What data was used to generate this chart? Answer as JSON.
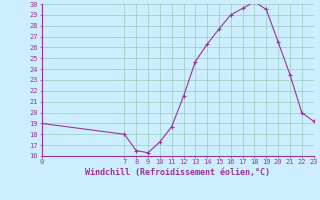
{
  "x": [
    0,
    7,
    8,
    9,
    10,
    11,
    12,
    13,
    14,
    15,
    16,
    17,
    18,
    19,
    20,
    21,
    22,
    23
  ],
  "y": [
    19.0,
    18.0,
    16.5,
    16.3,
    17.3,
    18.7,
    21.5,
    24.7,
    26.3,
    27.7,
    29.0,
    29.6,
    30.2,
    29.5,
    26.5,
    23.5,
    20.0,
    19.2
  ],
  "title": "Windchill (Refroidissement éolien,°C)",
  "xlim": [
    0,
    23
  ],
  "ylim": [
    16,
    30
  ],
  "yticks": [
    16,
    17,
    18,
    19,
    20,
    21,
    22,
    23,
    24,
    25,
    26,
    27,
    28,
    29,
    30
  ],
  "xticks": [
    0,
    7,
    8,
    9,
    10,
    11,
    12,
    13,
    14,
    15,
    16,
    17,
    18,
    19,
    20,
    21,
    22,
    23
  ],
  "line_color": "#993399",
  "marker": "+",
  "bg_color": "#cceeff",
  "plot_bg_color": "#cceeff",
  "grid_color": "#99ccbb",
  "spine_color": "#993399",
  "label_color": "#993399",
  "tick_color": "#993399",
  "tick_fontsize": 5,
  "xlabel_fontsize": 6,
  "xlabel_fontweight": "bold"
}
